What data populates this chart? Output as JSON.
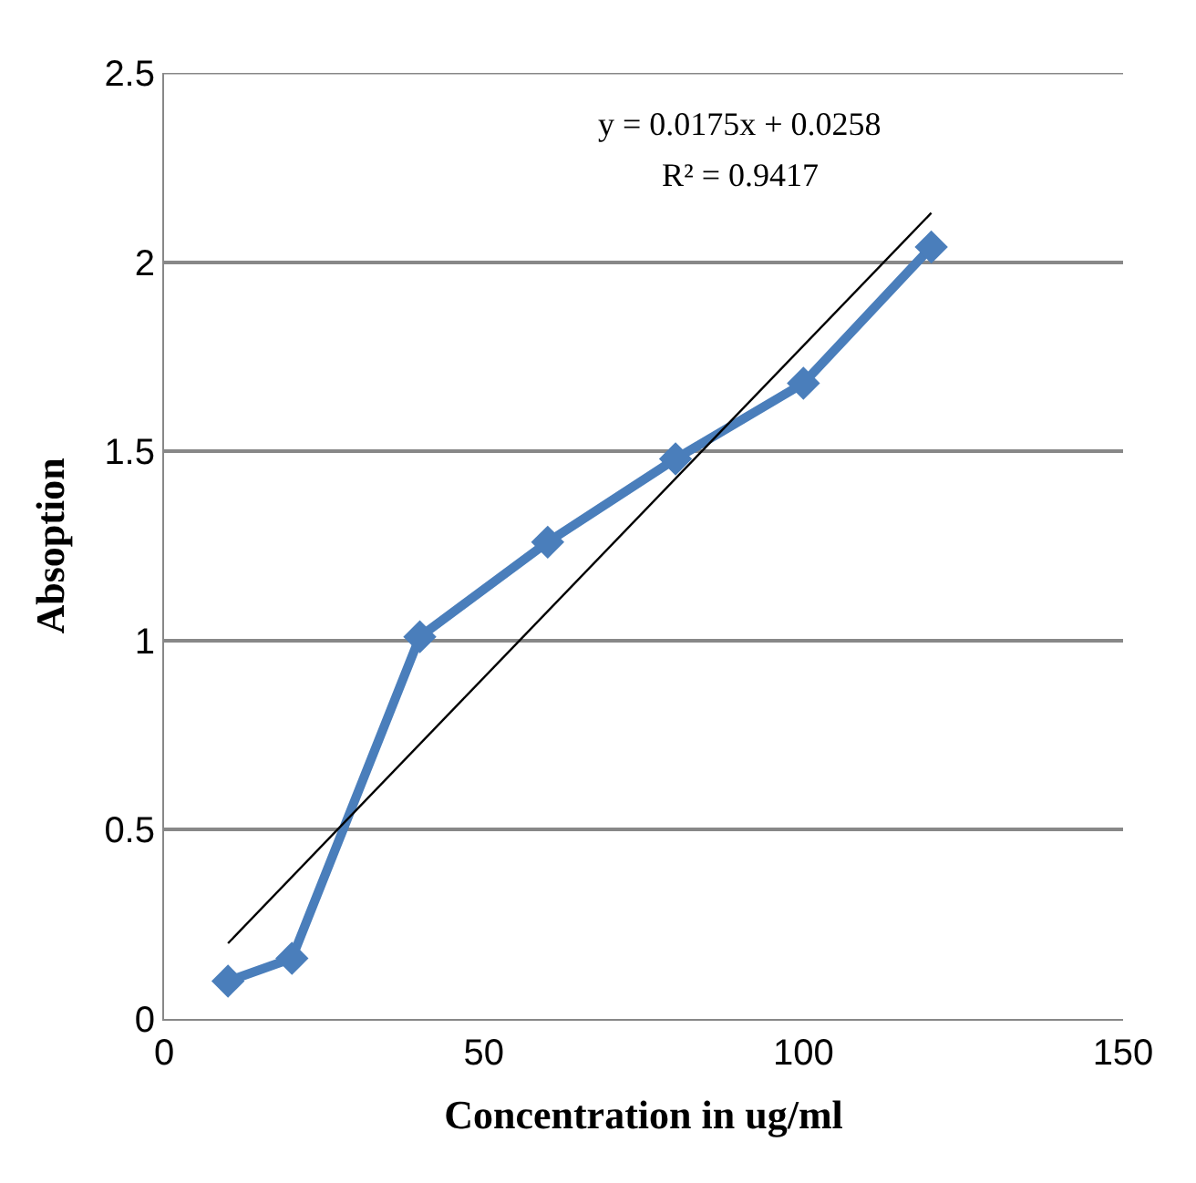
{
  "chart_data": {
    "type": "line",
    "xlabel": "Concentration in ug/ml",
    "ylabel": "Absoption",
    "x": [
      10,
      20,
      40,
      60,
      80,
      100,
      120
    ],
    "series": [
      {
        "color": "#4a7ebb",
        "values": [
          0.1,
          0.16,
          1.01,
          1.26,
          1.48,
          1.68,
          2.04
        ],
        "marker": "diamond"
      },
      {
        "type": "line",
        "color": "#000000",
        "x": [
          10,
          120
        ],
        "values": [
          0.2,
          2.13
        ],
        "marker": "none"
      }
    ],
    "annotations": [
      "y = 0.0175x + 0.0258",
      "R² = 0.9417"
    ],
    "xlim": [
      0,
      150
    ],
    "xticks": [
      0,
      50,
      100,
      150
    ],
    "ylim": [
      0,
      2.5
    ],
    "yticks": [
      0,
      0.5,
      1,
      1.5,
      2,
      2.5
    ],
    "grid": "y"
  }
}
